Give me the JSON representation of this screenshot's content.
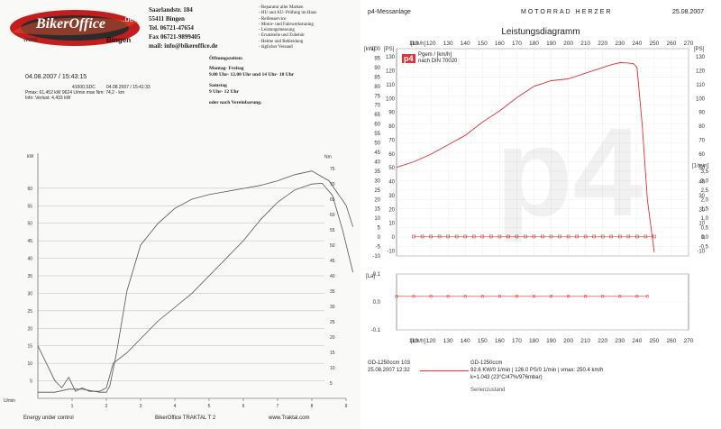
{
  "left": {
    "logo_text": "BikerOffice",
    "logo_domain": ".de",
    "logo_site": "www.",
    "logo_city": "Bingen",
    "address": [
      "Saarlandstr. 184",
      "55411 Bingen",
      "Tel. 06721-47654",
      "Fax 06721-9899405",
      "mail: info@bikeroffice.de"
    ],
    "services": [
      "- Reparatur aller Marken",
      "- HU und AU- Prüfung im Haus",
      "- Reifenservice",
      "- Motor- und Fahrwerkstuning",
      "- Leistungsmessung",
      "- Ersatzteile und Zubehör",
      "- Helme und Bekleidung",
      "- täglicher Versand"
    ],
    "hours_title": "Öffnungszeiten:",
    "hours": [
      "Montag- Freitag",
      "9.00 Uhr- 12.00 Uhr und 14 Uhr- 18 Uhr",
      "",
      "Samstag",
      "9 Uhr- 12 Uhr",
      "",
      "oder nach Vereinbarung."
    ],
    "date_header": "04.08.2007  /  15:43:15",
    "run_id": "41000.SDC",
    "run_date": "04.08.2007  /  15:41:33",
    "pmax_line": "Pmax: 61,452 kW    9624 U/min    max Nm: 74,2   - km",
    "info_line": "Info: Verlust: 4,433 kW",
    "footer_left": "Energy  under control",
    "footer_mid": "BikerOffice TRAKTAL  T 2",
    "footer_right": "www.Traktal.com"
  },
  "right": {
    "header_left": "p4-Messanlage",
    "header_mid": "MOTORRAD  HERZER",
    "header_right": "25.08.2007",
    "logo": "p4",
    "legend_line1": "Pgem / [km/h]",
    "legend_line2": "nach DIN 70020",
    "watermark": "p4",
    "footer": {
      "model": "GD-1250ccm 103",
      "datetime": "25.08.2007  12:32",
      "model2": "GD-1250ccm",
      "values": "92.6 KW/0 1/min  |  126.0 PS/0 1/min  |  vmax: 250.4 km/h",
      "k": "k=1.043 (23°C/47%/976mbar)",
      "status": "Serienzustand"
    }
  },
  "chart_data": [
    {
      "type": "line",
      "title": "",
      "xlabel": "U/min",
      "ylabel": "kW",
      "y2label": "Nm",
      "xlim": [
        0,
        9
      ],
      "ylim": [
        0,
        70
      ],
      "y2lim": [
        0,
        80
      ],
      "x_ticks": [
        1,
        2,
        3,
        4,
        5,
        6,
        7,
        8,
        9
      ],
      "y_ticks": [
        5,
        10,
        15,
        20,
        25,
        30,
        35,
        40,
        45,
        50,
        55,
        60
      ],
      "y2_ticks": [
        5,
        10,
        15,
        20,
        25,
        30,
        35,
        40,
        45,
        50,
        55,
        60,
        65,
        70,
        75
      ],
      "series": [
        {
          "values_x": [
            0,
            0.5,
            0.7,
            0.9,
            1.1,
            1.3,
            1.5,
            1.8,
            2.0,
            2.2,
            2.6,
            3.0,
            3.5,
            4.0,
            4.5,
            5.0,
            5.5,
            6.0,
            6.5,
            7.0,
            7.5,
            8.0,
            8.3,
            8.6,
            8.9,
            9.2
          ],
          "values_y": [
            15,
            5,
            3,
            6,
            2,
            3,
            2,
            2,
            3,
            10,
            13,
            17,
            22,
            26,
            30,
            35,
            40,
            45,
            51,
            56,
            59.5,
            61.2,
            61.4,
            58,
            48,
            36
          ]
        },
        {
          "values_x": [
            0,
            0.5,
            0.9,
            1.3,
            1.8,
            2.0,
            2.1,
            2.3,
            2.6,
            3.0,
            3.5,
            4.0,
            4.5,
            5.0,
            5.5,
            6.0,
            6.5,
            7.0,
            7.5,
            8.0,
            8.5,
            9.0,
            9.2
          ],
          "values_y": [
            2,
            2,
            3,
            3,
            2,
            2,
            4,
            15,
            35,
            50,
            57,
            62,
            65,
            66.5,
            67.5,
            68.5,
            69.5,
            71,
            73,
            74.2,
            71,
            63,
            56
          ]
        }
      ]
    },
    {
      "type": "line",
      "title": "Leistungsdiagramm",
      "xlabel": "[km/h]",
      "ylabel": "[kW]",
      "y2label": "[PS]",
      "xlim": [
        100,
        270
      ],
      "x_ticks": [
        110,
        120,
        130,
        140,
        150,
        160,
        170,
        180,
        190,
        200,
        210,
        220,
        230,
        240,
        250,
        260,
        270
      ],
      "ylim": [
        -10,
        100
      ],
      "y_ticks": [
        -10,
        -5,
        0,
        5,
        10,
        15,
        20,
        25,
        30,
        35,
        40,
        45,
        50,
        55,
        60,
        65,
        70,
        75,
        80,
        85,
        90,
        95,
        100
      ],
      "y2_ticks": [
        -10,
        0,
        10,
        20,
        30,
        40,
        50,
        60,
        70,
        80,
        90,
        100,
        110,
        120,
        130
      ],
      "y3label": "[1/min]",
      "y3_ticks": [
        -0.5,
        0,
        0.5,
        1.0,
        1.5,
        2.0,
        2.5,
        3.0,
        3.5
      ],
      "series": [
        {
          "name": "Pgem / [km/h]",
          "x": [
            100,
            110,
            120,
            130,
            140,
            150,
            160,
            170,
            180,
            190,
            200,
            210,
            220,
            225,
            230,
            235,
            238,
            240,
            243,
            246,
            250,
            250
          ],
          "y": [
            37,
            40,
            44,
            49,
            54,
            61,
            67,
            74,
            80,
            83,
            84,
            87,
            90,
            91.5,
            92.6,
            92.4,
            92.0,
            90,
            60,
            20,
            -8,
            -8
          ]
        },
        {
          "name": "",
          "x": [
            110,
            115,
            120,
            125,
            130,
            135,
            140,
            145,
            150,
            155,
            160,
            165,
            170,
            175,
            180,
            185,
            190,
            195,
            200,
            205,
            210,
            215,
            220,
            225,
            230,
            235,
            240,
            245,
            250
          ],
          "y": [
            0.3,
            0.3,
            0.3,
            0.3,
            0.3,
            0.3,
            0.3,
            0.3,
            0.3,
            0.3,
            0.3,
            0.3,
            0.3,
            0.3,
            0.3,
            0.3,
            0.3,
            0.3,
            0.3,
            0.3,
            0.3,
            0.3,
            0.3,
            0.3,
            0.3,
            0.3,
            0.3,
            0.3,
            0.3
          ]
        }
      ]
    },
    {
      "type": "line",
      "ylabel": "[La]",
      "xlabel": "[km/h]",
      "xlim": [
        100,
        270
      ],
      "ylim": [
        -0.1,
        0.1
      ],
      "y_ticks": [
        -0.1,
        0.0,
        0.1
      ],
      "x_ticks": [
        110,
        120,
        130,
        140,
        150,
        160,
        170,
        180,
        190,
        200,
        210,
        220,
        230,
        240,
        250,
        260,
        270
      ],
      "series": [
        {
          "name": "",
          "x": [
            100,
            110,
            120,
            130,
            140,
            150,
            160,
            170,
            180,
            190,
            200,
            210,
            220,
            230,
            240,
            246
          ],
          "y": [
            0.02,
            0.02,
            0.02,
            0.02,
            0.02,
            0.02,
            0.02,
            0.02,
            0.02,
            0.02,
            0.02,
            0.02,
            0.02,
            0.02,
            0.02,
            0.02
          ]
        }
      ]
    }
  ]
}
